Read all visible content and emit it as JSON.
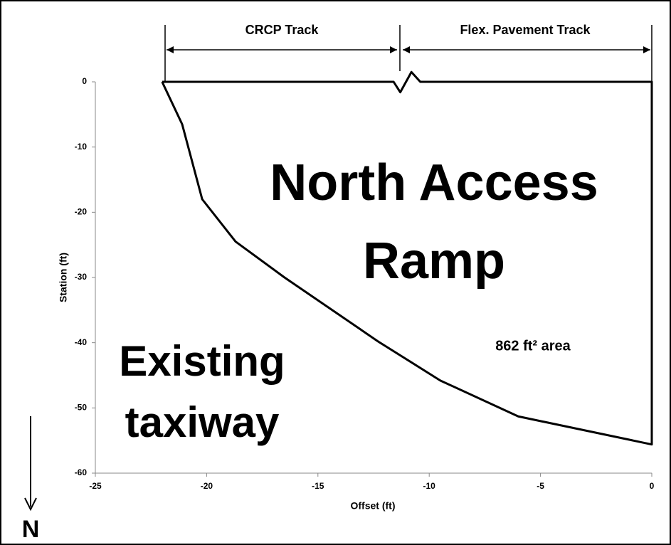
{
  "chart_data": {
    "type": "line",
    "xlabel": "Offset (ft)",
    "ylabel": "Station (ft)",
    "xlim": [
      -25,
      0
    ],
    "xticks": [
      -25,
      -20,
      -15,
      -10,
      -5,
      0
    ],
    "ylim": [
      -60,
      0
    ],
    "yticks": [
      -60,
      -50,
      -40,
      -30,
      -20,
      -10,
      0
    ],
    "series": [
      {
        "color": "#000000",
        "x": [
          -22.0,
          -21.1,
          -20.2,
          -18.7,
          -16.5,
          -12.3,
          -9.5,
          -6.0,
          0,
          0,
          -10.4,
          -10.8,
          -11.3,
          -11.6,
          -22.0
        ],
        "values": [
          0,
          -6.5,
          -18,
          -24.5,
          -30,
          -39.8,
          -45.8,
          -51.3,
          -55.6,
          0,
          0,
          1.5,
          -1.6,
          0,
          0
        ]
      }
    ],
    "annotations": [
      "CRCP Track",
      "Flex. Pavement Track",
      "North Access",
      "Ramp",
      "862 ft² area",
      "Existing",
      "taxiway",
      "N"
    ]
  }
}
